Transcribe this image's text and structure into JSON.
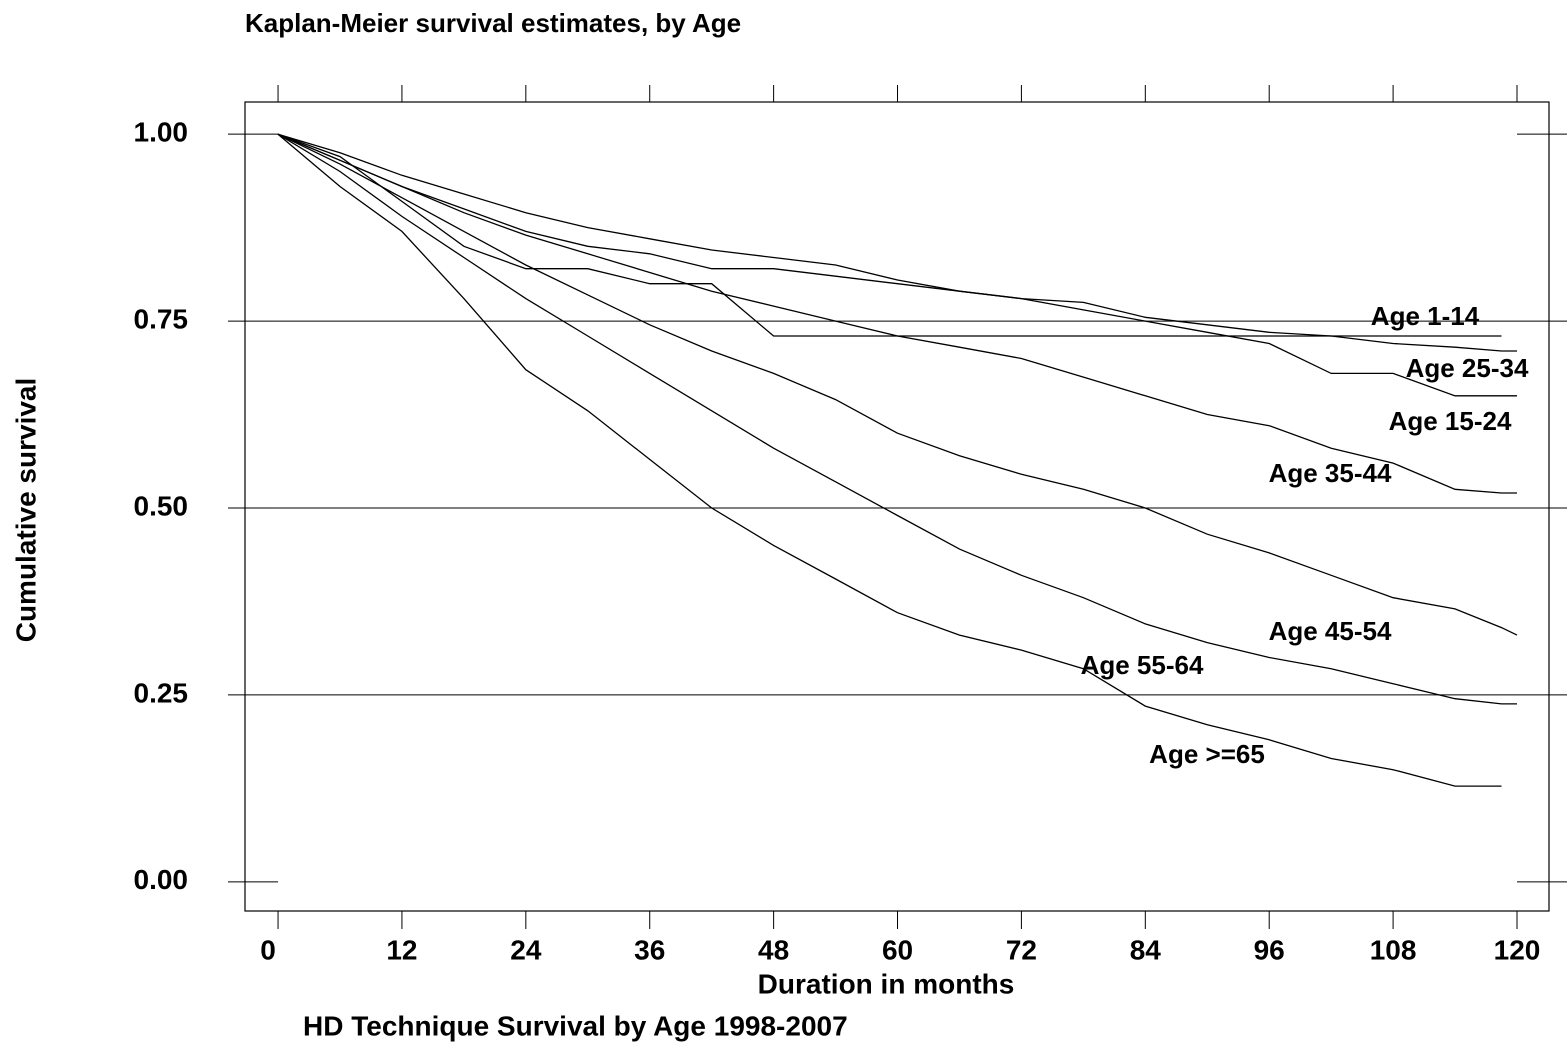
{
  "chart_data": {
    "type": "line",
    "title": "Kaplan-Meier survival estimates, by Age",
    "x_label": "Duration in months",
    "y_label": "Cumulative survival",
    "note": "HD Technique Survival by Age 1998-2007",
    "x": [
      0,
      6,
      12,
      18,
      24,
      30,
      36,
      42,
      48,
      54,
      60,
      66,
      72,
      78,
      84,
      90,
      96,
      102,
      108,
      114,
      118.5,
      120
    ],
    "series": [
      {
        "name": "Age 1-14",
        "color": "#000000",
        "values": [
          1,
          0.97,
          0.91,
          0.85,
          0.82,
          0.82,
          0.8,
          0.8,
          0.73,
          0.73,
          0.73,
          0.73,
          0.73,
          0.73,
          0.73,
          0.73,
          0.73,
          0.73,
          0.73,
          0.73,
          0.73,
          null
        ]
      },
      {
        "name": "Age 25-34",
        "color": "#000000",
        "values": [
          1,
          0.965,
          0.93,
          0.9,
          0.87,
          0.85,
          0.84,
          0.82,
          0.82,
          0.81,
          0.8,
          0.79,
          0.78,
          0.775,
          0.755,
          0.745,
          0.735,
          0.73,
          0.72,
          0.715,
          0.71,
          0.71
        ]
      },
      {
        "name": "Age 15-24",
        "color": "#000000",
        "values": [
          1,
          0.975,
          0.945,
          0.92,
          0.895,
          0.875,
          0.86,
          0.845,
          0.835,
          0.825,
          0.805,
          0.79,
          0.78,
          0.765,
          0.75,
          0.735,
          0.72,
          0.68,
          0.68,
          0.65,
          0.65,
          0.65
        ]
      },
      {
        "name": "Age 35-44",
        "color": "#000000",
        "values": [
          1,
          0.965,
          0.93,
          0.895,
          0.865,
          0.84,
          0.815,
          0.79,
          0.77,
          0.75,
          0.73,
          0.715,
          0.7,
          0.675,
          0.65,
          0.625,
          0.61,
          0.58,
          0.56,
          0.525,
          0.52,
          0.52
        ]
      },
      {
        "name": "Age 45-54",
        "color": "#000000",
        "values": [
          1,
          0.96,
          0.915,
          0.87,
          0.825,
          0.785,
          0.745,
          0.71,
          0.68,
          0.645,
          0.6,
          0.57,
          0.545,
          0.525,
          0.5,
          0.465,
          0.44,
          0.41,
          0.38,
          0.365,
          0.34,
          0.33
        ]
      },
      {
        "name": "Age 55-64",
        "color": "#000000",
        "values": [
          1,
          0.95,
          0.89,
          0.835,
          0.78,
          0.73,
          0.68,
          0.63,
          0.58,
          0.535,
          0.49,
          0.445,
          0.41,
          0.38,
          0.345,
          0.32,
          0.3,
          0.285,
          0.265,
          0.245,
          0.238,
          0.238
        ]
      },
      {
        "name": "Age >=65",
        "color": "#000000",
        "values": [
          1,
          0.93,
          0.87,
          0.78,
          0.685,
          0.63,
          0.565,
          0.5,
          0.45,
          0.405,
          0.36,
          0.33,
          0.31,
          0.285,
          0.235,
          0.21,
          0.19,
          0.165,
          0.15,
          0.128,
          0.128,
          null
        ]
      }
    ],
    "xlim": [
      -3.2,
      123.1
    ],
    "xticks": [
      0,
      12,
      24,
      36,
      48,
      60,
      72,
      84,
      96,
      108,
      120
    ],
    "ylim": [
      -0.039,
      1.043
    ],
    "yticks": [
      {
        "value": 0,
        "label": "0.00"
      },
      0.25,
      {
        "value": 0.5,
        "label": "0.50"
      },
      0.75,
      {
        "value": 1,
        "label": "1.00"
      }
    ],
    "grid": true
  }
}
